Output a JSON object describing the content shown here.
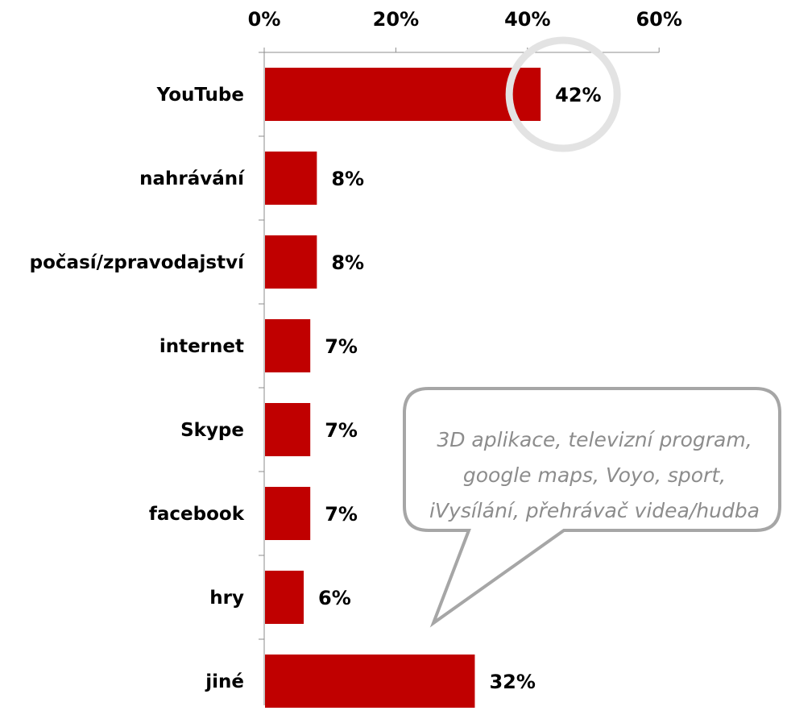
{
  "chart_data": {
    "type": "bar",
    "orientation": "horizontal",
    "categories": [
      "YouTube",
      "nahrávání",
      "počasí/zpravodajství",
      "internet",
      "Skype",
      "facebook",
      "hry",
      "jiné"
    ],
    "values": [
      42,
      8,
      8,
      7,
      7,
      7,
      6,
      32
    ],
    "value_labels": [
      "42%",
      "8%",
      "8%",
      "7%",
      "7%",
      "7%",
      "6%",
      "32%"
    ],
    "x_ticks": [
      "0%",
      "20%",
      "40%",
      "60%"
    ],
    "xlim": [
      0,
      60
    ],
    "x_axis_position": "top",
    "grid": false,
    "highlight_category": "YouTube",
    "callout": {
      "attached_to": "jiné",
      "lines": [
        "3D aplikace, televizní program,",
        "google maps, Voyo, sport,",
        "iVysílání, přehrávač videa/hudba"
      ]
    },
    "colors": {
      "bar": "#c00000",
      "axis": "#8c8c8c",
      "callout_border": "#a6a6a6",
      "callout_text": "#8c8c8c",
      "highlight_ring": "#e3e3e3"
    }
  }
}
